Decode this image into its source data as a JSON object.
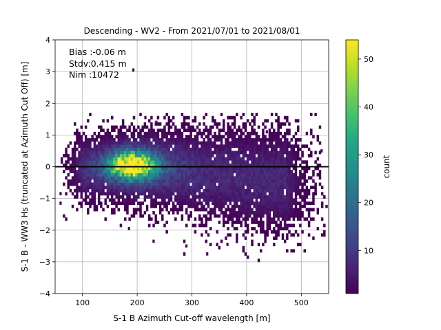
{
  "chart_data": {
    "type": "heatmap",
    "title": "Descending - WV2 - From 2021/07/01 to 2021/08/01",
    "xlabel": "S-1 B Azimuth Cut-off wavelength [m]",
    "ylabel": "S-1 B - WW3 Hs (truncated at Azimuth Cut Off) [m]",
    "xlim": [
      50,
      550
    ],
    "ylim": [
      -4,
      4
    ],
    "xticks": [
      "100",
      "200",
      "300",
      "400",
      "500"
    ],
    "yticks": [
      "−4",
      "−3",
      "−2",
      "−1",
      "0",
      "1",
      "2",
      "3",
      "4"
    ],
    "grid": true,
    "zero_line_y": 0,
    "annotations": [
      "Bias :-0.06 m",
      "Stdv:0.415 m",
      "Nim :10472"
    ],
    "colorbar": {
      "label": "count",
      "colormap": "viridis",
      "range": [
        1,
        54
      ],
      "ticks": [
        "10",
        "20",
        "30",
        "40",
        "50"
      ]
    },
    "density_model": {
      "peak_x": 190,
      "peak_y": 0.05,
      "peak_count": 54,
      "core_sigma_x": 28,
      "core_sigma_y": 0.28,
      "bg_count": 2.2,
      "bg_x_range": [
        100,
        470
      ],
      "skew_y_per_x": -0.0012
    },
    "outlier_points": [
      {
        "x": 193,
        "y": 3.05
      },
      {
        "x": 185,
        "y": -1.95
      },
      {
        "x": 230,
        "y": -2.35
      },
      {
        "x": 328,
        "y": -2.75
      },
      {
        "x": 60,
        "y": -0.85
      },
      {
        "x": 60,
        "y": -1.15
      },
      {
        "x": 537,
        "y": 0.5
      },
      {
        "x": 437,
        "y": 1.1
      },
      {
        "x": 235,
        "y": 1.4
      },
      {
        "x": 215,
        "y": 1.55
      },
      {
        "x": 290,
        "y": -2.5
      },
      {
        "x": 365,
        "y": -2.45
      }
    ]
  }
}
